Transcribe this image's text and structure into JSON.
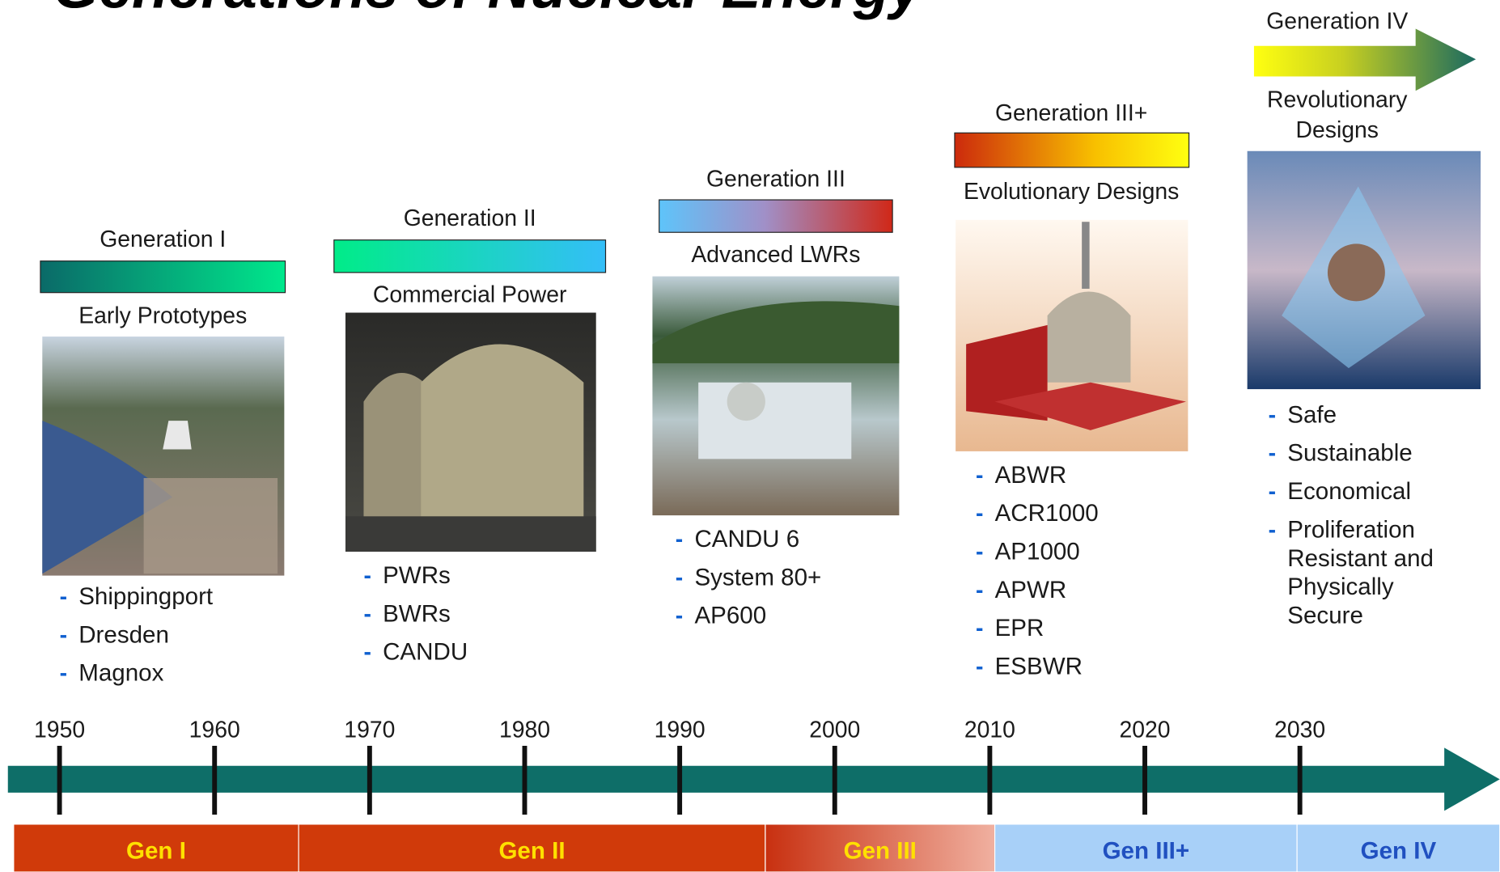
{
  "title": "Generations of Nuclear Energy",
  "generations": [
    {
      "label": "Generation I",
      "caption": [
        "Early Prototypes"
      ],
      "items": [
        [
          "Shippingport"
        ],
        [
          "Dresden"
        ],
        [
          "Magnox"
        ]
      ]
    },
    {
      "label": "Generation II",
      "caption": [
        "Commercial Power"
      ],
      "items": [
        [
          "PWRs"
        ],
        [
          "BWRs"
        ],
        [
          "CANDU"
        ]
      ]
    },
    {
      "label": "Generation III",
      "caption": [
        "Advanced LWRs"
      ],
      "items": [
        [
          "CANDU 6"
        ],
        [
          "System 80+"
        ],
        [
          "AP600"
        ]
      ]
    },
    {
      "label": "Generation III+",
      "caption": [
        "Evolutionary Designs"
      ],
      "items": [
        [
          "ABWR"
        ],
        [
          "ACR1000"
        ],
        [
          "AP1000"
        ],
        [
          "APWR"
        ],
        [
          "EPR"
        ],
        [
          "ESBWR"
        ]
      ]
    },
    {
      "label": "Generation IV",
      "caption": [
        "Revolutionary",
        "Designs"
      ],
      "items": [
        [
          "Safe"
        ],
        [
          "Sustainable"
        ],
        [
          "Economical"
        ],
        [
          "Proliferation",
          "Resistant and",
          "Physically",
          "Secure"
        ]
      ]
    }
  ],
  "timeline": {
    "years": [
      1950,
      1960,
      1970,
      1980,
      1990,
      2000,
      2010,
      2020,
      2030
    ]
  },
  "bands": [
    "Gen I",
    "Gen II",
    "Gen III",
    "Gen III+",
    "Gen IV"
  ]
}
